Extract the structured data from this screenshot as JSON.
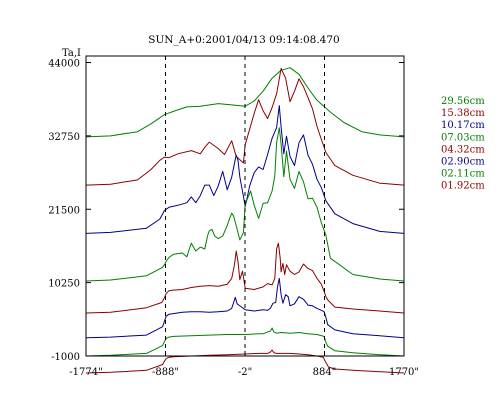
{
  "chart_data": {
    "type": "line",
    "title": "SUN_A+0:2001/04/13 09:14:08.470",
    "ylabel": "Ta,I",
    "xlabel": "",
    "x_tick_labels": [
      "-1774\"",
      "-888\"",
      "-2\"",
      "884\"",
      "1770\""
    ],
    "x_ticks": [
      -1774,
      -888,
      -2,
      884,
      1770
    ],
    "xlim": [
      -1774,
      1770
    ],
    "y_tick_labels": [
      "44000",
      "32750",
      "21500",
      "10250",
      "-1000"
    ],
    "y_ticks": [
      44000,
      32750,
      21500,
      10250,
      -1000
    ],
    "ylim": [
      -1000,
      45000
    ],
    "dashed_lines_x": [
      -888,
      -2,
      884
    ],
    "legend_position": "right",
    "grid": false,
    "series": [
      {
        "name": "29.56cm",
        "color": "#008000",
        "offset": 32600,
        "x": [
          -1774,
          -1500,
          -1200,
          -1050,
          -900,
          -800,
          -650,
          -500,
          -300,
          -150,
          0,
          100,
          200,
          300,
          400,
          500,
          600,
          700,
          800,
          950,
          1100,
          1300,
          1500,
          1770
        ],
        "y": [
          0,
          150,
          800,
          2000,
          3400,
          3900,
          4600,
          4700,
          5100,
          4900,
          4700,
          5500,
          7000,
          9000,
          10200,
          10600,
          9600,
          7500,
          5600,
          3800,
          2200,
          800,
          300,
          0
        ]
      },
      {
        "name": "15.38cm",
        "color": "#8b0000",
        "offset": 25200,
        "x": [
          -1774,
          -1500,
          -1200,
          -1050,
          -950,
          -900,
          -850,
          -750,
          -600,
          -500,
          -450,
          -400,
          -300,
          -230,
          -150,
          -100,
          -20,
          0,
          100,
          150,
          200,
          250,
          300,
          350,
          400,
          450,
          500,
          550,
          600,
          650,
          700,
          750,
          800,
          850,
          900,
          1000,
          1200,
          1500,
          1770
        ],
        "y": [
          0,
          150,
          800,
          2400,
          3800,
          4300,
          4200,
          4800,
          5300,
          4800,
          5800,
          6600,
          5600,
          4700,
          6800,
          4400,
          3400,
          6200,
          11000,
          13100,
          11400,
          10200,
          11900,
          14000,
          17900,
          16400,
          12800,
          14400,
          16300,
          15100,
          13400,
          11700,
          9000,
          7000,
          5000,
          3000,
          1500,
          300,
          0
        ]
      },
      {
        "name": "10.17cm",
        "color": "#00008b",
        "offset": 17800,
        "x": [
          -1774,
          -1500,
          -1100,
          -950,
          -900,
          -850,
          -750,
          -650,
          -600,
          -550,
          -500,
          -450,
          -400,
          -350,
          -300,
          -250,
          -200,
          -150,
          -120,
          -100,
          -80,
          -60,
          -20,
          0,
          50,
          100,
          150,
          200,
          250,
          300,
          350,
          380,
          400,
          430,
          460,
          500,
          550,
          600,
          650,
          700,
          750,
          800,
          850,
          900,
          1000,
          1200,
          1500,
          1770
        ],
        "y": [
          0,
          150,
          800,
          2200,
          3500,
          4000,
          4300,
          4700,
          5600,
          4700,
          5800,
          7400,
          7400,
          5800,
          7300,
          9500,
          6700,
          8600,
          10700,
          12000,
          11200,
          8700,
          5700,
          4100,
          7300,
          9300,
          10200,
          9800,
          12100,
          14600,
          16200,
          19600,
          16300,
          12200,
          14900,
          11800,
          10400,
          13900,
          15100,
          12000,
          10600,
          8300,
          7000,
          5000,
          3000,
          1500,
          300,
          0
        ]
      },
      {
        "name": "07.03cm",
        "color": "#008000",
        "offset": 10500,
        "x": [
          -1774,
          -1500,
          -1100,
          -920,
          -900,
          -880,
          -850,
          -800,
          -700,
          -650,
          -620,
          -600,
          -550,
          -500,
          -450,
          -420,
          -400,
          -370,
          -340,
          -300,
          -250,
          -200,
          -170,
          -150,
          -130,
          -100,
          -60,
          -20,
          0,
          60,
          100,
          150,
          200,
          250,
          300,
          330,
          350,
          380,
          400,
          430,
          460,
          500,
          550,
          600,
          650,
          700,
          750,
          800,
          850,
          900,
          950,
          1200,
          1500,
          1770
        ],
        "y": [
          0,
          150,
          800,
          2100,
          2500,
          3000,
          3600,
          4100,
          4300,
          3700,
          5000,
          5800,
          4600,
          5200,
          4900,
          6900,
          7700,
          7900,
          6900,
          6500,
          6900,
          8500,
          9700,
          10400,
          10000,
          8500,
          6300,
          7400,
          11800,
          13800,
          11600,
          9600,
          11900,
          12000,
          13800,
          16100,
          21200,
          23500,
          21000,
          16000,
          19900,
          15600,
          14200,
          16800,
          15200,
          12600,
          12700,
          11300,
          8900,
          7000,
          3500,
          1000,
          300,
          0
        ]
      },
      {
        "name": "04.32cm",
        "color": "#8b0000",
        "offset": 5600,
        "x": [
          -1774,
          -1500,
          -1100,
          -930,
          -900,
          -880,
          -850,
          -800,
          -700,
          -600,
          -500,
          -400,
          -300,
          -200,
          -150,
          -120,
          -100,
          -80,
          -60,
          -30,
          0,
          100,
          200,
          250,
          300,
          330,
          350,
          370,
          390,
          400,
          420,
          440,
          460,
          500,
          550,
          600,
          650,
          700,
          750,
          800,
          850,
          880,
          900,
          920,
          1000,
          1200,
          1500,
          1770
        ],
        "y": [
          0,
          100,
          800,
          1600,
          2300,
          3000,
          3400,
          3500,
          3600,
          3900,
          4100,
          4200,
          4100,
          4400,
          5300,
          7300,
          9500,
          7900,
          5100,
          6400,
          3800,
          3600,
          4000,
          4500,
          4300,
          5300,
          9800,
          10700,
          8400,
          6300,
          7600,
          5900,
          7400,
          6400,
          5900,
          6300,
          7500,
          6800,
          6500,
          5300,
          4400,
          3300,
          2500,
          2000,
          900,
          600,
          300,
          0
        ]
      },
      {
        "name": "02.90cm",
        "color": "#00008b",
        "offset": 1800,
        "x": [
          -1774,
          -1500,
          -1100,
          -920,
          -900,
          -880,
          -850,
          -800,
          -700,
          -600,
          -500,
          -400,
          -300,
          -200,
          -150,
          -110,
          -90,
          -70,
          -40,
          0,
          100,
          200,
          250,
          280,
          310,
          340,
          360,
          380,
          400,
          420,
          450,
          480,
          500,
          550,
          600,
          650,
          700,
          750,
          800,
          850,
          880,
          900,
          920,
          1000,
          1200,
          1500,
          1770
        ],
        "y": [
          0,
          100,
          400,
          1700,
          2500,
          3300,
          3600,
          3700,
          3900,
          4000,
          4000,
          3900,
          4000,
          4100,
          4500,
          6200,
          5200,
          5000,
          4700,
          4300,
          4100,
          4300,
          4200,
          4500,
          5300,
          5400,
          7800,
          9100,
          6600,
          5300,
          6600,
          6300,
          4900,
          5200,
          6300,
          5900,
          5000,
          4900,
          4500,
          4200,
          4000,
          3100,
          2000,
          1200,
          600,
          300,
          0
        ]
      },
      {
        "name": "02.11cm",
        "color": "#008000",
        "offset": -1000,
        "x": [
          -1774,
          -1500,
          -1100,
          -920,
          -900,
          -880,
          -850,
          -800,
          -600,
          -400,
          -200,
          0,
          150,
          200,
          250,
          280,
          300,
          320,
          350,
          400,
          500,
          600,
          700,
          800,
          880,
          900,
          920,
          1000,
          1200,
          1500,
          1770
        ],
        "y": [
          0,
          100,
          400,
          1600,
          2200,
          2700,
          2900,
          3000,
          3100,
          3200,
          3300,
          3300,
          3400,
          3400,
          3700,
          3800,
          4300,
          3700,
          3500,
          3600,
          3500,
          3600,
          3400,
          3300,
          3000,
          2100,
          1500,
          800,
          500,
          200,
          0
        ]
      },
      {
        "name": "01.92cm",
        "color": "#8b0000",
        "offset": -3600,
        "x": [
          -1774,
          -1500,
          -1100,
          -920,
          -900,
          -880,
          -850,
          -800,
          -600,
          -400,
          -200,
          0,
          150,
          250,
          280,
          300,
          320,
          350,
          400,
          500,
          600,
          700,
          800,
          870,
          900,
          930,
          1000,
          1200,
          1500,
          1770
        ],
        "y": [
          0,
          100,
          400,
          1300,
          1800,
          2200,
          2400,
          2500,
          2600,
          2700,
          2800,
          2900,
          3000,
          3000,
          3200,
          3500,
          3100,
          3000,
          3000,
          3000,
          2900,
          2800,
          2600,
          2400,
          1600,
          900,
          600,
          400,
          200,
          0
        ]
      }
    ]
  }
}
